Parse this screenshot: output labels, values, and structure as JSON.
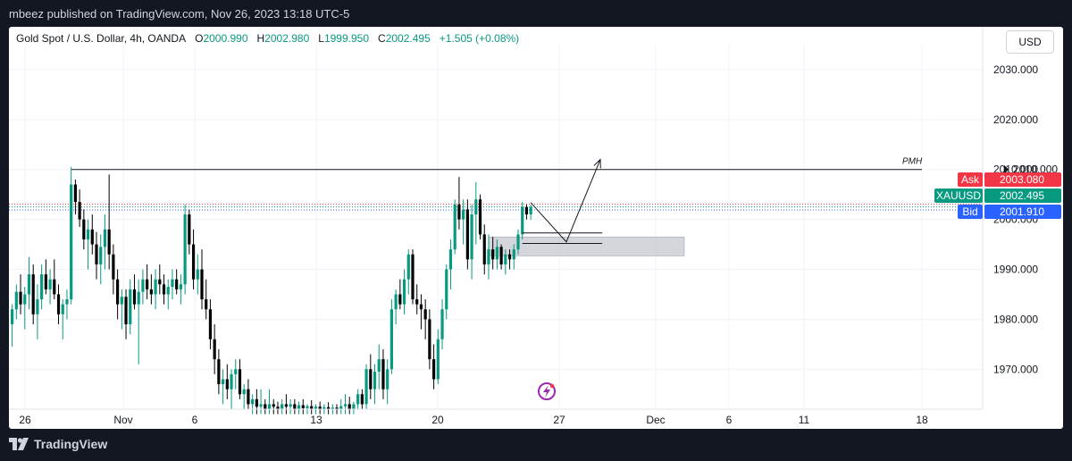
{
  "header": {
    "publish_line": "mbeez published on TradingView.com, Nov 26, 2023 13:18 UTC-5"
  },
  "legend": {
    "symbol": "Gold Spot / U.S. Dollar, 4h, OANDA",
    "open_label": "O",
    "open": "2000.990",
    "high_label": "H",
    "high": "2002.980",
    "low_label": "L",
    "low": "1999.950",
    "close_label": "C",
    "close": "2002.495",
    "change": "+1.505 (+0.08%)"
  },
  "currency_button": "USD",
  "footer": {
    "brand": "TradingView"
  },
  "colors": {
    "up": "#089981",
    "down": "#000000",
    "ask": "#f23645",
    "bid": "#2962ff",
    "last": "#089981",
    "zone": "#b2b5be"
  },
  "chart_data": {
    "type": "candlestick",
    "symbol": "XAUUSD",
    "timeframe": "4h",
    "x_ticks": [
      "26",
      "Nov",
      "6",
      "13",
      "20",
      "27",
      "Dec",
      "6",
      "11",
      "18"
    ],
    "y_ticks": [
      "1970.000",
      "1980.000",
      "1990.000",
      "2000.000",
      "2010.000",
      "2020.000",
      "2030.000"
    ],
    "ylim": [
      1962,
      2035
    ],
    "price_labels": {
      "ask": {
        "label": "Ask",
        "value": "2003.080"
      },
      "last": {
        "label": "XAUUSD",
        "value": "2002.495"
      },
      "bid": {
        "label": "Bid",
        "value": "2001.910"
      }
    },
    "annotations": {
      "pmh": {
        "text": "PMH",
        "price": 2010.0
      },
      "zone": {
        "top": 1996.5,
        "bottom": 1992.7
      },
      "level_lines": [
        1997.3,
        1995.2
      ],
      "projection": {
        "apex": 1995.5,
        "target": 2012.0
      }
    },
    "candles": [
      [
        1979.0,
        1983.0,
        1974.5,
        1982.0
      ],
      [
        1982.0,
        1987.0,
        1980.0,
        1985.5
      ],
      [
        1985.5,
        1989.0,
        1981.0,
        1983.0
      ],
      [
        1983.0,
        1986.5,
        1978.0,
        1985.0
      ],
      [
        1985.0,
        1992.5,
        1982.0,
        1989.0
      ],
      [
        1989.0,
        1991.0,
        1979.0,
        1981.0
      ],
      [
        1981.0,
        1987.0,
        1976.0,
        1984.0
      ],
      [
        1984.0,
        1991.0,
        1982.0,
        1989.0
      ],
      [
        1989.0,
        1992.0,
        1985.0,
        1986.0
      ],
      [
        1986.0,
        1990.0,
        1983.0,
        1988.0
      ],
      [
        1988.0,
        1992.0,
        1984.0,
        1985.0
      ],
      [
        1985.0,
        1987.0,
        1979.0,
        1981.0
      ],
      [
        1981.0,
        1984.0,
        1976.0,
        1983.0
      ],
      [
        1983.0,
        1986.0,
        1980.0,
        1984.0
      ],
      [
        1984.0,
        2010.5,
        1983.0,
        2007.0
      ],
      [
        2007.0,
        2008.0,
        2001.0,
        2003.5
      ],
      [
        2003.5,
        2006.0,
        1998.5,
        2000.0
      ],
      [
        2000.0,
        2002.0,
        1994.0,
        1996.0
      ],
      [
        1996.0,
        2000.0,
        1990.0,
        1998.0
      ],
      [
        1998.0,
        2001.0,
        1993.0,
        1995.0
      ],
      [
        1995.0,
        1997.5,
        1988.0,
        1991.0
      ],
      [
        1991.0,
        1997.0,
        1987.0,
        1994.5
      ],
      [
        1994.5,
        2001.0,
        1990.0,
        1998.0
      ],
      [
        1998.0,
        2009.0,
        1990.0,
        1993.0
      ],
      [
        1993.0,
        1995.0,
        1985.0,
        1988.0
      ],
      [
        1988.0,
        1990.0,
        1980.0,
        1983.0
      ],
      [
        1983.0,
        1986.0,
        1978.0,
        1984.5
      ],
      [
        1984.5,
        1986.0,
        1976.0,
        1979.0
      ],
      [
        1979.0,
        1988.0,
        1977.0,
        1986.0
      ],
      [
        1986.0,
        1989.0,
        1982.0,
        1983.0
      ],
      [
        1983.0,
        1988.0,
        1971.0,
        1985.5
      ],
      [
        1985.5,
        1990.0,
        1983.0,
        1988.0
      ],
      [
        1988.0,
        1991.0,
        1984.0,
        1986.0
      ],
      [
        1986.0,
        1989.0,
        1983.0,
        1985.0
      ],
      [
        1985.0,
        1990.0,
        1982.0,
        1988.0
      ],
      [
        1988.0,
        1991.0,
        1985.0,
        1987.0
      ],
      [
        1987.0,
        1989.0,
        1983.0,
        1985.0
      ],
      [
        1985.0,
        1988.0,
        1982.0,
        1986.5
      ],
      [
        1986.5,
        1990.0,
        1984.0,
        1988.0
      ],
      [
        1988.0,
        1990.0,
        1985.0,
        1986.0
      ],
      [
        1986.0,
        1989.0,
        1983.0,
        1987.0
      ],
      [
        1987.0,
        2003.0,
        1985.0,
        2001.0
      ],
      [
        2001.0,
        2002.0,
        1993.0,
        1995.0
      ],
      [
        1995.0,
        1998.0,
        1986.0,
        1988.0
      ],
      [
        1988.0,
        1993.0,
        1985.0,
        1990.0
      ],
      [
        1990.0,
        1994.0,
        1982.0,
        1984.0
      ],
      [
        1984.0,
        1988.0,
        1980.0,
        1982.0
      ],
      [
        1982.0,
        1984.0,
        1974.0,
        1976.0
      ],
      [
        1976.0,
        1979.0,
        1969.0,
        1972.0
      ],
      [
        1972.0,
        1974.0,
        1965.0,
        1967.0
      ],
      [
        1967.0,
        1970.0,
        1963.0,
        1968.0
      ],
      [
        1968.0,
        1971.0,
        1964.0,
        1966.0
      ],
      [
        1966.0,
        1970.0,
        1962.0,
        1969.0
      ],
      [
        1969.0,
        1972.0,
        1966.0,
        1970.0
      ],
      [
        1970.0,
        1972.0,
        1964.0,
        1965.0
      ],
      [
        1965.0,
        1967.0,
        1962.0,
        1966.0
      ],
      [
        1966.0,
        1968.0,
        1962.0,
        1963.0
      ],
      [
        1963.0,
        1965.0,
        1961.0,
        1964.0
      ],
      [
        1964.0,
        1966.0,
        1961.0,
        1962.5
      ],
      [
        1962.5,
        1966.0,
        1961.0,
        1963.0
      ],
      [
        1963.0,
        1964.0,
        1961.0,
        1962.0
      ],
      [
        1962.0,
        1966.0,
        1961.0,
        1963.0
      ],
      [
        1963.0,
        1964.0,
        1961.0,
        1962.5
      ],
      [
        1962.5,
        1963.5,
        1961.0,
        1962.0
      ],
      [
        1962.0,
        1964.0,
        1961.0,
        1963.0
      ],
      [
        1963.0,
        1965.0,
        1961.0,
        1962.5
      ],
      [
        1962.5,
        1964.0,
        1961.0,
        1963.0
      ],
      [
        1963.0,
        1964.0,
        1961.0,
        1962.0
      ],
      [
        1962.0,
        1963.5,
        1961.0,
        1962.8
      ],
      [
        1962.8,
        1964.0,
        1961.0,
        1962.2
      ],
      [
        1962.2,
        1963.0,
        1961.0,
        1962.6
      ],
      [
        1962.6,
        1963.8,
        1961.0,
        1962.1
      ],
      [
        1962.1,
        1963.0,
        1961.0,
        1962.5
      ],
      [
        1962.5,
        1963.5,
        1961.0,
        1962.0
      ],
      [
        1962.0,
        1963.0,
        1961.0,
        1962.4
      ],
      [
        1962.4,
        1963.4,
        1961.0,
        1962.0
      ],
      [
        1962.0,
        1963.0,
        1961.0,
        1962.3
      ],
      [
        1962.3,
        1963.0,
        1961.0,
        1962.0
      ],
      [
        1962.0,
        1964.0,
        1961.0,
        1962.6
      ],
      [
        1962.6,
        1965.0,
        1961.0,
        1963.0
      ],
      [
        1963.0,
        1964.5,
        1961.0,
        1962.0
      ],
      [
        1962.0,
        1963.5,
        1961.0,
        1963.0
      ],
      [
        1963.0,
        1966.0,
        1962.0,
        1965.0
      ],
      [
        1965.0,
        1966.0,
        1962.0,
        1963.0
      ],
      [
        1963.0,
        1971.0,
        1962.0,
        1970.0
      ],
      [
        1970.0,
        1973.0,
        1964.0,
        1966.0
      ],
      [
        1966.0,
        1971.0,
        1963.0,
        1969.5
      ],
      [
        1969.5,
        1975.0,
        1966.0,
        1972.0
      ],
      [
        1972.0,
        1974.0,
        1964.0,
        1966.0
      ],
      [
        1966.0,
        1972.0,
        1963.0,
        1970.0
      ],
      [
        1970.0,
        1984.0,
        1969.0,
        1982.0
      ],
      [
        1982.0,
        1986.0,
        1979.0,
        1985.0
      ],
      [
        1985.0,
        1988.0,
        1982.0,
        1983.0
      ],
      [
        1983.0,
        1990.0,
        1981.0,
        1988.0
      ],
      [
        1988.0,
        1994.0,
        1985.0,
        1993.0
      ],
      [
        1993.0,
        1994.0,
        1983.0,
        1984.0
      ],
      [
        1984.0,
        1987.0,
        1981.0,
        1983.0
      ],
      [
        1983.0,
        1985.0,
        1978.0,
        1982.0
      ],
      [
        1982.0,
        1984.0,
        1976.0,
        1980.0
      ],
      [
        1980.0,
        1982.0,
        1970.0,
        1972.0
      ],
      [
        1972.0,
        1975.0,
        1966.0,
        1968.0
      ],
      [
        1968.0,
        1978.0,
        1967.0,
        1976.0
      ],
      [
        1976.0,
        1984.0,
        1974.0,
        1982.0
      ],
      [
        1982.0,
        1991.0,
        1980.0,
        1990.0
      ],
      [
        1990.0,
        1996.0,
        1986.0,
        1994.0
      ],
      [
        1994.0,
        2004.0,
        1993.0,
        2003.0
      ],
      [
        2003.0,
        2008.5,
        1998.0,
        2000.0
      ],
      [
        2000.0,
        2004.0,
        1995.0,
        2002.0
      ],
      [
        2002.0,
        2004.0,
        1990.0,
        1992.0
      ],
      [
        1992.0,
        2003.0,
        1988.0,
        2001.0
      ],
      [
        2001.0,
        2007.5,
        1995.0,
        2004.0
      ],
      [
        2004.0,
        2005.0,
        1996.0,
        1997.0
      ],
      [
        1997.0,
        1999.0,
        1989.0,
        1991.0
      ],
      [
        1991.0,
        1997.0,
        1988.0,
        1994.0
      ],
      [
        1994.0,
        1996.5,
        1990.0,
        1992.0
      ],
      [
        1992.0,
        1996.0,
        1990.0,
        1994.5
      ],
      [
        1994.5,
        1995.0,
        1990.0,
        1991.0
      ],
      [
        1991.0,
        1994.0,
        1989.0,
        1993.0
      ],
      [
        1993.0,
        1994.0,
        1990.0,
        1992.0
      ],
      [
        1992.0,
        1995.0,
        1990.0,
        1994.0
      ],
      [
        1994.0,
        1998.0,
        1993.0,
        1997.0
      ],
      [
        1997.0,
        2003.5,
        1996.0,
        2002.5
      ],
      [
        2002.5,
        2003.0,
        2000.0,
        2001.0
      ],
      [
        2001.0,
        2003.0,
        1999.95,
        2002.495
      ]
    ]
  }
}
